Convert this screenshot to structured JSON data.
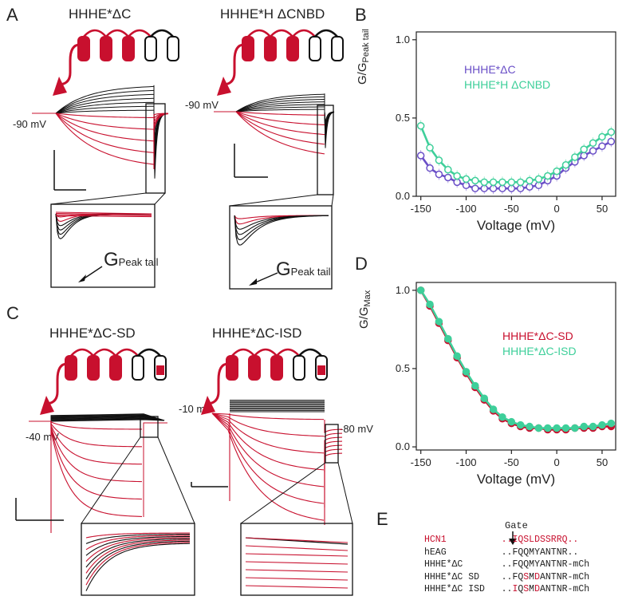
{
  "panels": {
    "A": {
      "label": "A",
      "left_title": "HHHE*ΔC",
      "right_title": "HHHE*H ΔCNBD",
      "left_hold": "-90 mV",
      "right_hold": "-90 mV",
      "inset_label_main": "G",
      "inset_label_sub": "Peak tail"
    },
    "B": {
      "label": "B"
    },
    "C": {
      "label": "C",
      "left_title": "HHHE*ΔC-SD",
      "right_title": "HHHE*ΔC-ISD",
      "left_hold": "-40 mV",
      "right_hold": "-10 mV",
      "right_tail": "-80 mV"
    },
    "D": {
      "label": "D"
    },
    "E": {
      "label": "E",
      "gate_label": "Gate",
      "rows": [
        {
          "name": "HCN1",
          "seq": "..IQSLDSSRRQ..",
          "red_name": true,
          "red_all": true,
          "red_idx": []
        },
        {
          "name": "hEAG",
          "seq": "..FQQMYANTNR..",
          "red_name": false,
          "red_all": false,
          "red_idx": []
        },
        {
          "name": "HHHE*ΔC",
          "seq": "..FQQMYANTNR-mCh",
          "red_name": false,
          "red_all": false,
          "red_idx": []
        },
        {
          "name": "HHHE*ΔC SD",
          "seq": "..FQSMDANTNR-mCh",
          "red_name": false,
          "red_all": false,
          "red_idx": [
            4,
            6
          ]
        },
        {
          "name": "HHHE*ΔC ISD",
          "seq": "..IQSMDANTNR-mCh",
          "red_name": false,
          "red_all": false,
          "red_idx": [
            2,
            4,
            6
          ]
        }
      ]
    }
  },
  "colors": {
    "red": "#c8102e",
    "purple": "#6a4fc7",
    "teal": "#3ecf9a",
    "black": "#111111"
  },
  "chart_data": [
    {
      "type": "line",
      "panel": "B",
      "xlabel": "Voltage (mV)",
      "ylabel": "G/G",
      "ylabel_sub": "Peak tail",
      "xlim": [
        -155,
        65
      ],
      "ylim": [
        0,
        1.05
      ],
      "xticks": [
        -150,
        -100,
        -50,
        0,
        50
      ],
      "yticks": [
        0.0,
        0.5,
        1.0
      ],
      "ytick_labels": [
        "0.0",
        "0.5",
        "1.0"
      ],
      "x": [
        -150,
        -140,
        -130,
        -120,
        -110,
        -100,
        -90,
        -80,
        -70,
        -60,
        -50,
        -40,
        -30,
        -20,
        -10,
        0,
        10,
        20,
        30,
        40,
        50,
        60
      ],
      "series": [
        {
          "name": "HHHE*ΔC",
          "color": "#6a4fc7",
          "values": [
            0.26,
            0.18,
            0.14,
            0.12,
            0.09,
            0.07,
            0.05,
            0.05,
            0.05,
            0.05,
            0.05,
            0.05,
            0.06,
            0.07,
            0.1,
            0.13,
            0.18,
            0.22,
            0.26,
            0.29,
            0.32,
            0.35
          ]
        },
        {
          "name": "HHHE*H ΔCNBD",
          "color": "#3ecf9a",
          "values": [
            0.45,
            0.31,
            0.23,
            0.17,
            0.13,
            0.11,
            0.1,
            0.09,
            0.09,
            0.09,
            0.09,
            0.09,
            0.1,
            0.11,
            0.13,
            0.16,
            0.2,
            0.25,
            0.3,
            0.34,
            0.38,
            0.41
          ]
        }
      ]
    },
    {
      "type": "line",
      "panel": "D",
      "xlabel": "Voltage (mV)",
      "ylabel": "G/G",
      "ylabel_sub": "Max",
      "xlim": [
        -155,
        65
      ],
      "ylim": [
        -0.02,
        1.05
      ],
      "xticks": [
        -150,
        -100,
        -50,
        0,
        50
      ],
      "yticks": [
        0.0,
        0.5,
        1.0
      ],
      "ytick_labels": [
        "0.0",
        "0.5",
        "1.0"
      ],
      "x": [
        -150,
        -140,
        -130,
        -120,
        -110,
        -100,
        -90,
        -80,
        -70,
        -60,
        -50,
        -40,
        -30,
        -20,
        -10,
        0,
        10,
        20,
        30,
        40,
        50,
        60
      ],
      "series": [
        {
          "name": "HHHE*ΔC-SD",
          "color": "#c8102e",
          "values": [
            1.0,
            0.9,
            0.79,
            0.68,
            0.57,
            0.47,
            0.38,
            0.3,
            0.23,
            0.18,
            0.15,
            0.13,
            0.12,
            0.12,
            0.11,
            0.11,
            0.11,
            0.12,
            0.12,
            0.12,
            0.13,
            0.13
          ]
        },
        {
          "name": "HHHE*ΔC-ISD",
          "color": "#3ecf9a",
          "values": [
            1.0,
            0.91,
            0.8,
            0.69,
            0.58,
            0.48,
            0.39,
            0.31,
            0.24,
            0.19,
            0.16,
            0.14,
            0.13,
            0.12,
            0.12,
            0.12,
            0.12,
            0.12,
            0.13,
            0.13,
            0.14,
            0.15
          ]
        }
      ]
    }
  ]
}
